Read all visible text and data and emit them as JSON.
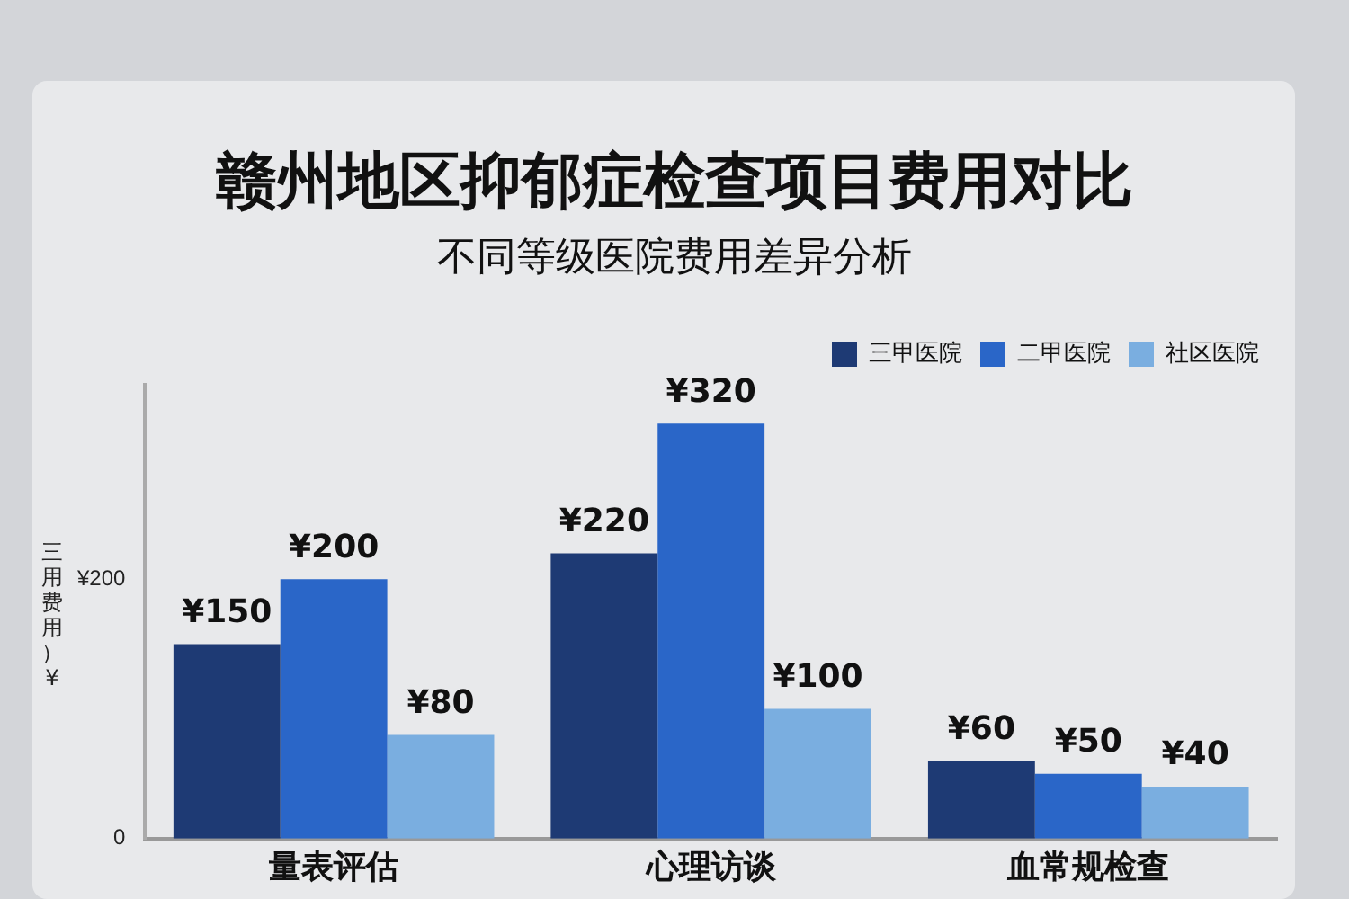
{
  "chart_data": {
    "type": "bar",
    "title": "赣州地区抑郁症检查项目费用对比",
    "subtitle": "不同等级医院费用差异分析",
    "ylabel": "三用费用）¥",
    "categories": [
      "量表评估",
      "心理访谈",
      "血常规检查"
    ],
    "series": [
      {
        "name": "三甲医院",
        "color": "#1e3a74",
        "values": [
          150,
          220,
          60
        ],
        "value_labels": [
          "¥150",
          "¥220",
          "¥60"
        ]
      },
      {
        "name": "二甲医院",
        "color": "#2a66c8",
        "values": [
          200,
          320,
          50
        ],
        "value_labels": [
          "¥200",
          "¥320",
          "¥50"
        ]
      },
      {
        "name": "社区医院",
        "color": "#7aaee0",
        "values": [
          80,
          100,
          40
        ],
        "value_labels": [
          "¥80",
          "¥100",
          "¥40"
        ]
      }
    ],
    "ylim": [
      0,
      350
    ],
    "yticks": [
      0,
      {
        "value": 200,
        "label": "¥200"
      }
    ],
    "grid": false,
    "legend": "top right"
  }
}
